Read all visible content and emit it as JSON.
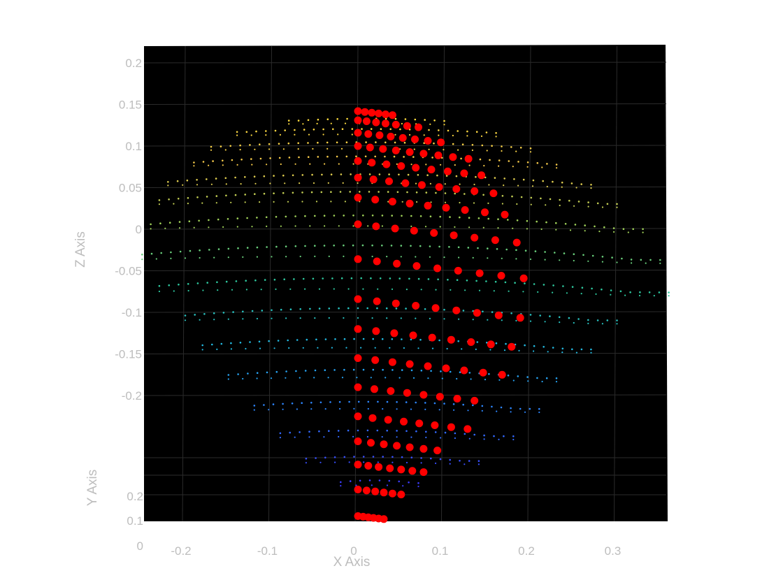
{
  "chart_data": {
    "type": "scatter",
    "projection": "3d",
    "title": "",
    "xlabel": "X Axis",
    "ylabel": "Y Axis",
    "zlabel": "Z Axis",
    "x_ticks": [
      -0.2,
      -0.1,
      0,
      0.1,
      0.2,
      0.3
    ],
    "x_tick_labels": [
      "-0.2",
      "-0.1",
      "0",
      "0.1",
      "0.2",
      "0.3"
    ],
    "z_ticks": [
      0.2,
      0.15,
      0.1,
      0.05,
      0,
      -0.05,
      -0.1,
      -0.15,
      -0.2
    ],
    "z_tick_labels": [
      "0.2",
      "0.15",
      "0.1",
      "0.05",
      "0",
      "-0.05",
      "-0.1",
      "-0.15",
      "-0.2"
    ],
    "y_ticks": [
      0.2,
      0.1,
      0
    ],
    "y_tick_labels": [
      "0.2",
      "0.1",
      "0"
    ],
    "xlim": [
      -0.25,
      0.36
    ],
    "zlim": [
      -0.36,
      0.22
    ],
    "grid": true,
    "background": "#000000",
    "marker_color": "#ff0000",
    "colormap": "parula",
    "colormap_stops": [
      "#3c3cff",
      "#2f7dff",
      "#22b8e8",
      "#2cc9a0",
      "#9fd35a",
      "#f4c84a",
      "#ffe23a"
    ],
    "z_color_range": [
      -0.3,
      0.15
    ],
    "series": [
      {
        "marker": "red-circle",
        "rows": [
          {
            "z": 0.142,
            "x": [
              0.0,
              0.008,
              0.016,
              0.024,
              0.032,
              0.04
            ]
          },
          {
            "z": 0.131,
            "x": [
              0.0,
              0.01,
              0.021,
              0.032,
              0.044,
              0.057,
              0.07
            ]
          },
          {
            "z": 0.116,
            "x": [
              0.0,
              0.012,
              0.025,
              0.038,
              0.052,
              0.066,
              0.081,
              0.096
            ]
          },
          {
            "z": 0.1,
            "x": [
              0.0,
              0.014,
              0.029,
              0.044,
              0.06,
              0.076,
              0.093,
              0.11,
              0.128
            ]
          },
          {
            "z": 0.082,
            "x": [
              0.0,
              0.016,
              0.033,
              0.05,
              0.067,
              0.085,
              0.104,
              0.123,
              0.143
            ]
          },
          {
            "z": 0.062,
            "x": [
              0.0,
              0.018,
              0.036,
              0.055,
              0.074,
              0.094,
              0.114,
              0.135,
              0.157
            ]
          },
          {
            "z": 0.038,
            "x": [
              0.0,
              0.02,
              0.04,
              0.06,
              0.081,
              0.102,
              0.124,
              0.147,
              0.17
            ]
          },
          {
            "z": 0.006,
            "x": [
              0.0,
              0.021,
              0.043,
              0.065,
              0.088,
              0.111,
              0.135,
              0.159,
              0.184
            ]
          },
          {
            "z": -0.036,
            "x": [
              0.0,
              0.022,
              0.045,
              0.068,
              0.092,
              0.116,
              0.141,
              0.166,
              0.192
            ]
          },
          {
            "z": -0.084,
            "x": [
              0.0,
              0.022,
              0.044,
              0.067,
              0.09,
              0.114,
              0.138,
              0.163,
              0.188
            ]
          },
          {
            "z": -0.12,
            "x": [
              0.0,
              0.021,
              0.042,
              0.064,
              0.086,
              0.108,
              0.131,
              0.154,
              0.178
            ]
          },
          {
            "z": -0.155,
            "x": [
              0.0,
              0.02,
              0.04,
              0.06,
              0.081,
              0.102,
              0.123,
              0.145,
              0.167
            ]
          },
          {
            "z": -0.19,
            "x": [
              0.0,
              0.019,
              0.038,
              0.057,
              0.076,
              0.095,
              0.115,
              0.135
            ]
          },
          {
            "z": -0.225,
            "x": [
              0.0,
              0.017,
              0.035,
              0.053,
              0.071,
              0.089,
              0.108,
              0.127
            ]
          },
          {
            "z": -0.255,
            "x": [
              0.0,
              0.015,
              0.03,
              0.045,
              0.06,
              0.076,
              0.092
            ]
          },
          {
            "z": -0.283,
            "x": [
              0.0,
              0.012,
              0.024,
              0.037,
              0.05,
              0.063,
              0.076
            ]
          },
          {
            "z": -0.313,
            "x": [
              0.0,
              0.01,
              0.02,
              0.03,
              0.04,
              0.05
            ]
          },
          {
            "z": -0.345,
            "x": [
              0.0,
              0.006,
              0.012,
              0.018,
              0.024,
              0.03
            ]
          }
        ]
      },
      {
        "marker": "dot-colormap",
        "bands": [
          {
            "z": 0.13,
            "x_start": -0.08,
            "x_end": 0.1,
            "bulge": 0.012
          },
          {
            "z": 0.116,
            "x_start": -0.14,
            "x_end": 0.16,
            "bulge": 0.018
          },
          {
            "z": 0.098,
            "x_start": -0.17,
            "x_end": 0.2,
            "bulge": 0.026
          },
          {
            "z": 0.079,
            "x_start": -0.19,
            "x_end": 0.23,
            "bulge": 0.034
          },
          {
            "z": 0.055,
            "x_start": -0.22,
            "x_end": 0.27,
            "bulge": 0.044
          },
          {
            "z": 0.032,
            "x_start": -0.23,
            "x_end": 0.3,
            "bulge": 0.052
          },
          {
            "z": 0.002,
            "x_start": -0.24,
            "x_end": 0.33,
            "bulge": 0.058
          },
          {
            "z": -0.035,
            "x_start": -0.25,
            "x_end": 0.35,
            "bulge": 0.062
          },
          {
            "z": -0.074,
            "x_start": -0.23,
            "x_end": 0.36,
            "bulge": 0.06
          },
          {
            "z": -0.108,
            "x_start": -0.2,
            "x_end": 0.3,
            "bulge": 0.052
          },
          {
            "z": -0.143,
            "x_start": -0.18,
            "x_end": 0.27,
            "bulge": 0.044
          },
          {
            "z": -0.178,
            "x_start": -0.15,
            "x_end": 0.23,
            "bulge": 0.036
          },
          {
            "z": -0.215,
            "x_start": -0.12,
            "x_end": 0.21,
            "bulge": 0.03
          },
          {
            "z": -0.248,
            "x_start": -0.09,
            "x_end": 0.18,
            "bulge": 0.024
          },
          {
            "z": -0.278,
            "x_start": -0.06,
            "x_end": 0.14,
            "bulge": 0.018
          },
          {
            "z": -0.305,
            "x_start": -0.02,
            "x_end": 0.07,
            "bulge": 0.012
          }
        ]
      }
    ]
  }
}
